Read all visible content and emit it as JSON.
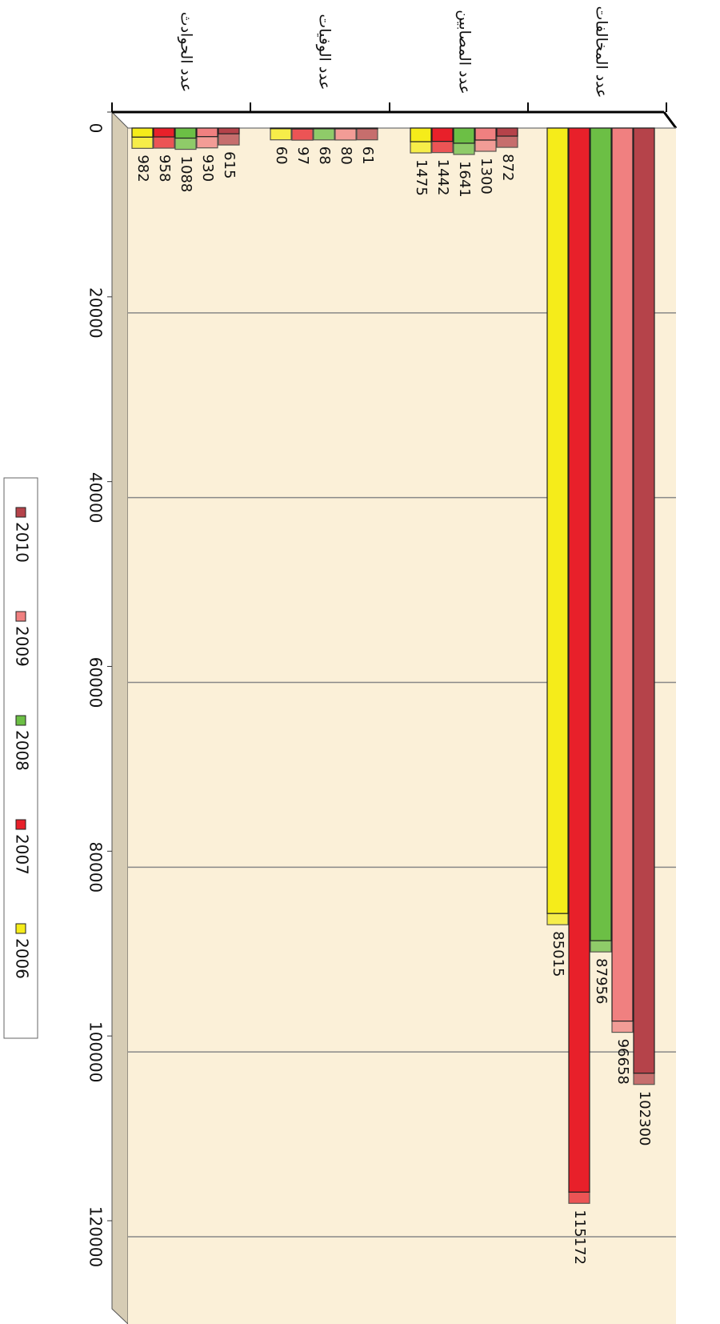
{
  "chart_data": {
    "type": "bar",
    "categories": [
      "عدد المخالفات",
      "عدد المصابين",
      "عدد الوفيات",
      "عدد الحوادث"
    ],
    "series": [
      {
        "name": "2006",
        "color": "#f5ec1a",
        "values": [
          85015,
          1475,
          60,
          982
        ]
      },
      {
        "name": "2007",
        "color": "#e8202a",
        "values": [
          115172,
          1442,
          97,
          958
        ]
      },
      {
        "name": "2008",
        "color": "#6cbf45",
        "values": [
          87956,
          1641,
          68,
          1088
        ]
      },
      {
        "name": "2009",
        "color": "#f08080",
        "values": [
          96658,
          1300,
          80,
          930
        ]
      },
      {
        "name": "2010",
        "color": "#b5434a",
        "values": [
          102300,
          872,
          61,
          615
        ]
      }
    ],
    "ylim": [
      0,
      120000
    ],
    "yticks": [
      0,
      20000,
      40000,
      60000,
      80000,
      100000,
      120000
    ],
    "grid": true,
    "legend": "left"
  }
}
